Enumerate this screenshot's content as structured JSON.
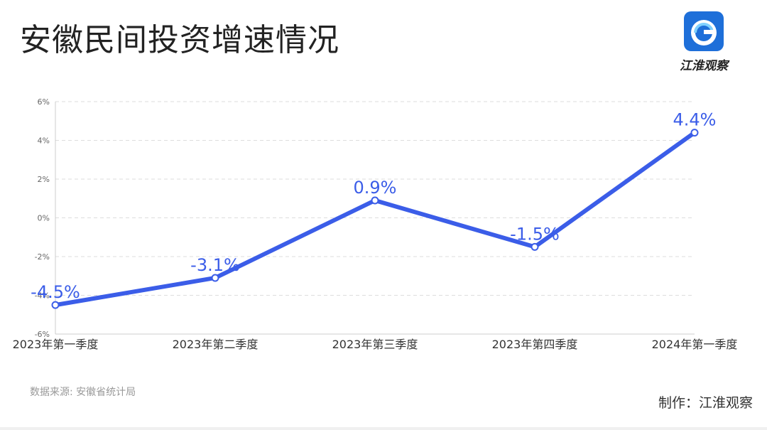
{
  "title": "安徽民间投资增速情况",
  "logo": {
    "text": "江淮观察",
    "icon": "jianghuai-logo-icon",
    "color": "#1e6fd9"
  },
  "source": "数据来源: 安徽省统计局",
  "credit": "制作：江淮观察",
  "chart_data": {
    "type": "line",
    "categories": [
      "2023年第一季度",
      "2023年第二季度",
      "2023年第三季度",
      "2023年第四季度",
      "2024年第一季度"
    ],
    "values": [
      -4.5,
      -3.1,
      0.9,
      -1.5,
      4.4
    ],
    "data_labels": [
      "-4.5%",
      "-3.1%",
      "0.9%",
      "-1.5%",
      "4.4%"
    ],
    "yticks": [
      6,
      4,
      2,
      0,
      -2,
      -4,
      -6
    ],
    "ytick_labels": [
      "6%",
      "4%",
      "2%",
      "0%",
      "-2%",
      "-4%",
      "-6%"
    ],
    "ylim": [
      -6,
      6
    ],
    "grid": true,
    "line_color": "#3b5de8"
  }
}
